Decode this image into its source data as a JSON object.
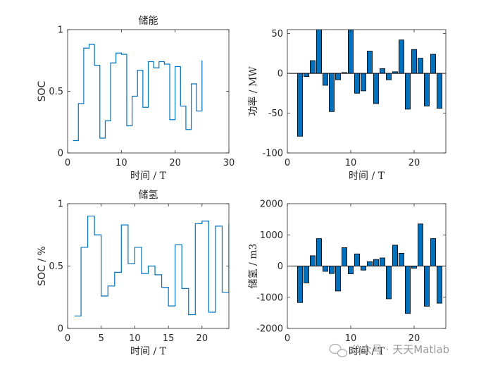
{
  "watermark": "公众号 · 天天Matlab",
  "colors": {
    "line": "#0072BD",
    "bar": "#0072BD",
    "axis": "#262626"
  },
  "chart_data": [
    {
      "id": "storage-soc",
      "type": "line",
      "title": "储能",
      "xlabel": "时间 / T",
      "ylabel": "SOC",
      "xlim": [
        0,
        30
      ],
      "ylim": [
        0,
        1
      ],
      "xticks": [
        0,
        10,
        20,
        30
      ],
      "yticks": [
        0,
        0.5,
        1
      ],
      "yticklabels": [
        "0",
        "0.5",
        "1"
      ],
      "x": [
        1,
        2,
        3,
        4,
        5,
        6,
        7,
        8,
        9,
        10,
        11,
        12,
        13,
        14,
        15,
        16,
        17,
        18,
        19,
        20,
        21,
        22,
        23,
        24,
        25
      ],
      "y": [
        0.1,
        0.4,
        0.85,
        0.88,
        0.71,
        0.12,
        0.26,
        0.73,
        0.81,
        0.8,
        0.22,
        0.46,
        0.67,
        0.37,
        0.74,
        0.69,
        0.74,
        0.72,
        0.27,
        0.7,
        0.38,
        0.19,
        0.56,
        0.34,
        0.75
      ]
    },
    {
      "id": "storage-power",
      "type": "bar",
      "title": "",
      "xlabel": "时间 / T",
      "ylabel": "功率 / MW",
      "xlim": [
        0,
        25
      ],
      "ylim": [
        -100,
        55
      ],
      "xticks": [
        0,
        10,
        20
      ],
      "yticks": [
        -100,
        -50,
        0,
        50
      ],
      "yticklabels": [
        "-100",
        "-50",
        "0",
        "50"
      ],
      "x": [
        2,
        3,
        4,
        5,
        6,
        7,
        8,
        9,
        10,
        11,
        12,
        13,
        14,
        15,
        16,
        17,
        18,
        19,
        20,
        21,
        22,
        23,
        24
      ],
      "values": [
        -79,
        -4,
        16,
        55,
        -15,
        -48,
        -8,
        1,
        55,
        -25,
        -22,
        28,
        -38,
        6,
        -8,
        2,
        42,
        -45,
        30,
        19,
        -41,
        24,
        -44
      ]
    },
    {
      "id": "hydrogen-soc",
      "type": "line",
      "title": "储氢",
      "xlabel": "时间 / T",
      "ylabel": "SOC / %",
      "xlim": [
        0,
        24
      ],
      "ylim": [
        0,
        1
      ],
      "xticks": [
        0,
        5,
        10,
        15,
        20
      ],
      "yticks": [
        0,
        0.5,
        1
      ],
      "yticklabels": [
        "0",
        "0.5",
        "1"
      ],
      "x": [
        1,
        2,
        3,
        4,
        5,
        6,
        7,
        8,
        9,
        10,
        11,
        12,
        13,
        14,
        15,
        16,
        17,
        18,
        19,
        20,
        21,
        22,
        23,
        24
      ],
      "y": [
        0.1,
        0.65,
        0.9,
        0.75,
        0.26,
        0.34,
        0.45,
        0.83,
        0.52,
        0.65,
        0.44,
        0.5,
        0.43,
        0.33,
        0.18,
        0.67,
        0.32,
        0.11,
        0.84,
        0.86,
        0.13,
        0.82,
        0.29,
        0.84
      ]
    },
    {
      "id": "hydrogen-power",
      "type": "bar",
      "title": "",
      "xlabel": "时间 / T",
      "ylabel": "储氢 / m3",
      "xlim": [
        0,
        25
      ],
      "ylim": [
        -2000,
        2000
      ],
      "xticks": [
        0,
        10,
        20
      ],
      "yticks": [
        -2000,
        -1000,
        0,
        1000,
        2000
      ],
      "yticklabels": [
        "-2000",
        "-1000",
        "0",
        "1000",
        "2000"
      ],
      "x": [
        2,
        3,
        4,
        5,
        6,
        7,
        8,
        9,
        10,
        11,
        12,
        13,
        14,
        15,
        16,
        17,
        18,
        19,
        20,
        21,
        22,
        23,
        24
      ],
      "values": [
        -1170,
        -540,
        330,
        880,
        -170,
        -240,
        -800,
        590,
        -250,
        390,
        -130,
        140,
        210,
        260,
        -1050,
        670,
        410,
        -1520,
        -70,
        1350,
        -1290,
        880,
        -1190
      ]
    }
  ]
}
